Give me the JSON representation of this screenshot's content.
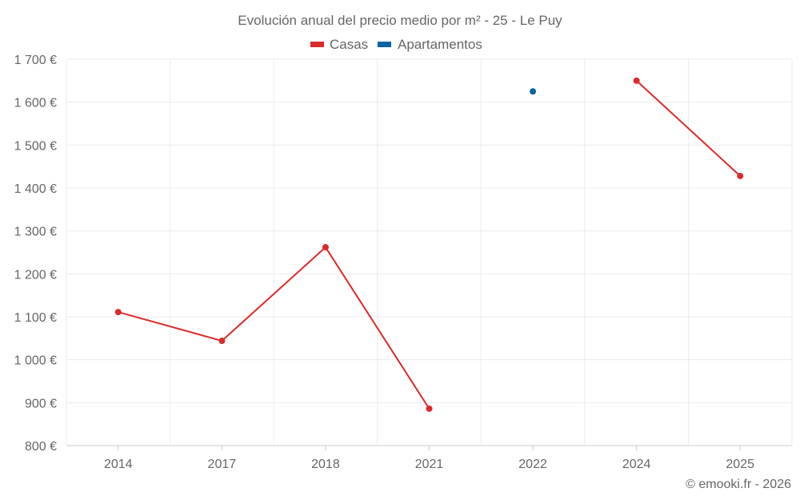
{
  "chart_data": {
    "type": "line",
    "title": "Evolución anual del precio medio por m² - 25 - Le Puy",
    "categories": [
      "2014",
      "2017",
      "2018",
      "2021",
      "2022",
      "2024",
      "2025"
    ],
    "series": [
      {
        "name": "Casas",
        "color": "#dc2a2a",
        "values": [
          1111,
          1044,
          1262,
          886,
          null,
          1650,
          1428
        ]
      },
      {
        "name": "Apartamentos",
        "color": "#0a64a4",
        "values": [
          null,
          null,
          null,
          null,
          1625,
          null,
          null
        ]
      }
    ],
    "ylim": [
      800,
      1700
    ],
    "yticks": [
      800,
      900,
      1000,
      1100,
      1200,
      1300,
      1400,
      1500,
      1600,
      1700
    ],
    "ytick_labels": [
      "800 €",
      "900 €",
      "1 000 €",
      "1 100 €",
      "1 200 €",
      "1 300 €",
      "1 400 €",
      "1 500 €",
      "1 600 €",
      "1 700 €"
    ],
    "xlabel": "",
    "ylabel": "",
    "grid": true,
    "legend": "top-center"
  },
  "credit": "© emooki.fr - 2026"
}
